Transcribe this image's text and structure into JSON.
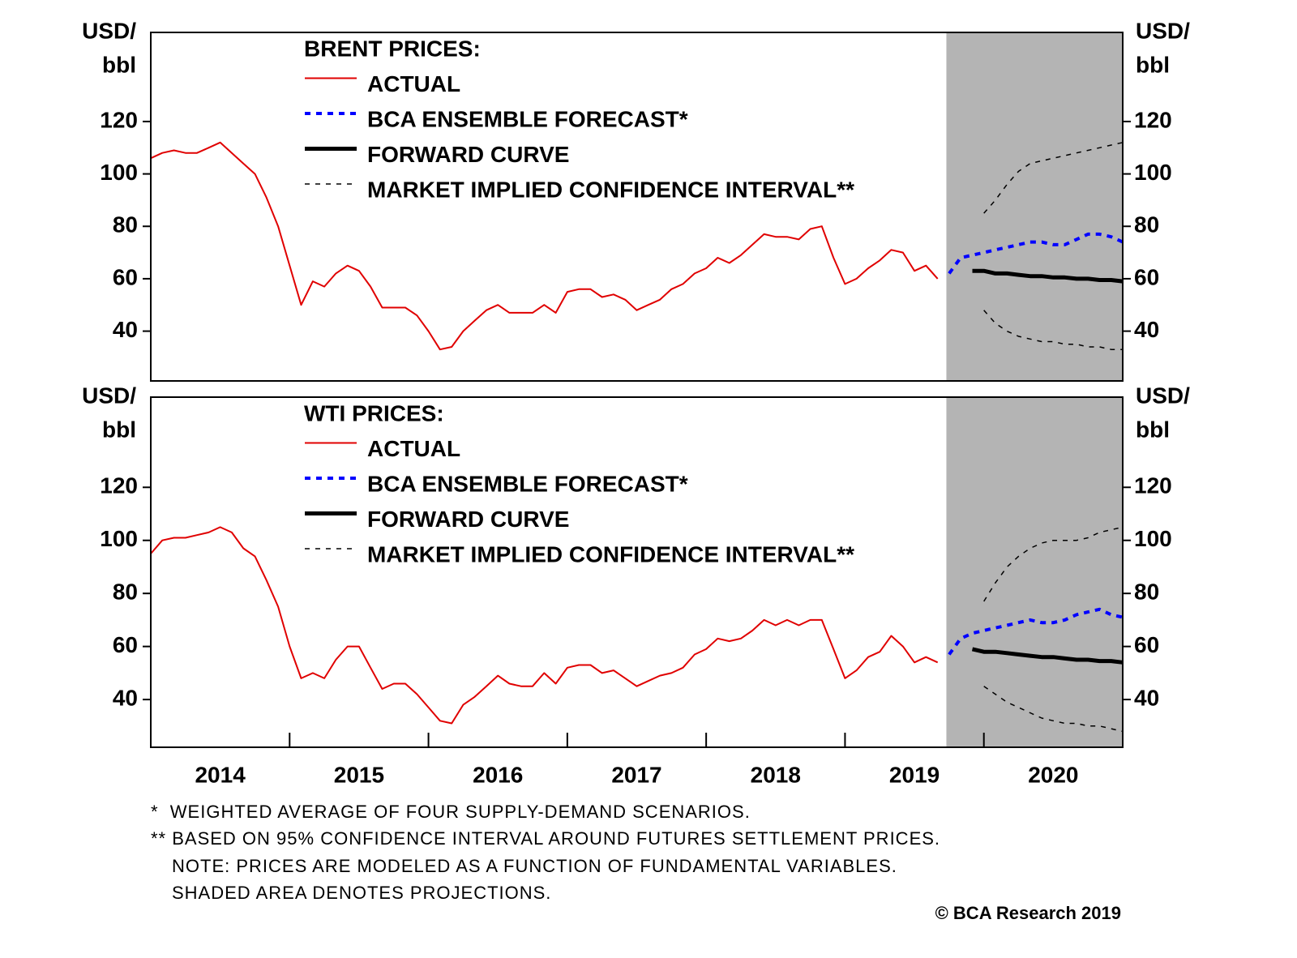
{
  "chart_data": [
    {
      "type": "line",
      "legend_title": "BRENT PRICES:",
      "y_unit": [
        "USD/",
        "bbl"
      ],
      "xlim": [
        2014,
        2021
      ],
      "ylim": [
        21,
        154
      ],
      "yticks": [
        40,
        60,
        80,
        100,
        120
      ],
      "shade": {
        "from": 2019.73,
        "to": 2021,
        "color": "#b4b4b4"
      },
      "series": [
        {
          "name": "ACTUAL",
          "color": "#e00000",
          "style": "solid",
          "width": 2,
          "x": [
            2014,
            2014.083,
            2014.167,
            2014.25,
            2014.333,
            2014.417,
            2014.5,
            2014.583,
            2014.667,
            2014.75,
            2014.833,
            2014.917,
            2015,
            2015.083,
            2015.167,
            2015.25,
            2015.333,
            2015.417,
            2015.5,
            2015.583,
            2015.667,
            2015.75,
            2015.833,
            2015.917,
            2016,
            2016.083,
            2016.167,
            2016.25,
            2016.333,
            2016.417,
            2016.5,
            2016.583,
            2016.667,
            2016.75,
            2016.833,
            2016.917,
            2017,
            2017.083,
            2017.167,
            2017.25,
            2017.333,
            2017.417,
            2017.5,
            2017.583,
            2017.667,
            2017.75,
            2017.833,
            2017.917,
            2018,
            2018.083,
            2018.167,
            2018.25,
            2018.333,
            2018.417,
            2018.5,
            2018.583,
            2018.667,
            2018.75,
            2018.833,
            2018.917,
            2019,
            2019.083,
            2019.167,
            2019.25,
            2019.333,
            2019.417,
            2019.5,
            2019.583,
            2019.667
          ],
          "values": [
            106,
            108,
            109,
            108,
            108,
            110,
            112,
            108,
            104,
            100,
            91,
            80,
            65,
            50,
            59,
            57,
            62,
            65,
            63,
            57,
            49,
            49,
            49,
            46,
            40,
            33,
            34,
            40,
            44,
            48,
            50,
            47,
            47,
            47,
            50,
            47,
            55,
            56,
            56,
            53,
            54,
            52,
            48,
            50,
            52,
            56,
            58,
            62,
            64,
            68,
            66,
            69,
            73,
            77,
            76,
            76,
            75,
            79,
            80,
            68,
            58,
            60,
            64,
            67,
            71,
            70,
            63,
            65,
            60
          ]
        },
        {
          "name": "BCA ENSEMBLE FORECAST*",
          "color": "#0000ff",
          "style": "dotted",
          "width": 4,
          "x": [
            2019.75,
            2019.833,
            2019.917,
            2020,
            2020.083,
            2020.167,
            2020.25,
            2020.333,
            2020.417,
            2020.5,
            2020.583,
            2020.667,
            2020.75,
            2020.833,
            2020.917,
            2021
          ],
          "values": [
            62,
            68,
            69,
            70,
            71,
            72,
            73,
            74,
            74,
            73,
            73,
            75,
            77,
            77,
            76,
            74
          ]
        },
        {
          "name": "FORWARD CURVE",
          "color": "#000000",
          "style": "solid",
          "width": 5,
          "x": [
            2019.917,
            2020,
            2020.083,
            2020.167,
            2020.25,
            2020.333,
            2020.417,
            2020.5,
            2020.583,
            2020.667,
            2020.75,
            2020.833,
            2020.917,
            2021
          ],
          "values": [
            63,
            63,
            62,
            62,
            61.5,
            61,
            61,
            60.5,
            60.5,
            60,
            60,
            59.5,
            59.5,
            59
          ]
        },
        {
          "name": "MARKET IMPLIED CONFIDENCE INTERVAL**",
          "color": "#000000",
          "style": "dashed",
          "width": 1.5,
          "x": [
            2020,
            2020.083,
            2020.167,
            2020.25,
            2020.333,
            2020.417,
            2020.5,
            2020.583,
            2020.667,
            2020.75,
            2020.833,
            2020.917,
            2021
          ],
          "values": [
            85,
            90,
            96,
            101,
            104,
            105,
            106,
            107,
            108,
            109,
            110,
            111,
            112
          ]
        },
        {
          "color": "#000000",
          "style": "dashed",
          "width": 1.5,
          "x": [
            2020,
            2020.083,
            2020.167,
            2020.25,
            2020.333,
            2020.417,
            2020.5,
            2020.583,
            2020.667,
            2020.75,
            2020.833,
            2020.917,
            2021
          ],
          "values": [
            48,
            43,
            40,
            38,
            37,
            36,
            36,
            35,
            35,
            34,
            34,
            33,
            33
          ]
        }
      ]
    },
    {
      "type": "line",
      "legend_title": "WTI PRICES:",
      "y_unit": [
        "USD/",
        "bbl"
      ],
      "xlim": [
        2014,
        2021
      ],
      "ylim": [
        22,
        154
      ],
      "yticks": [
        40,
        60,
        80,
        100,
        120
      ],
      "xtick_marks": [
        2015,
        2016,
        2017,
        2018,
        2019,
        2020
      ],
      "xticks": [
        {
          "value": 2014.5,
          "label": "2014"
        },
        {
          "value": 2015.5,
          "label": "2015"
        },
        {
          "value": 2016.5,
          "label": "2016"
        },
        {
          "value": 2017.5,
          "label": "2017"
        },
        {
          "value": 2018.5,
          "label": "2018"
        },
        {
          "value": 2019.5,
          "label": "2019"
        },
        {
          "value": 2020.5,
          "label": "2020"
        }
      ],
      "shade": {
        "from": 2019.73,
        "to": 2021,
        "color": "#b4b4b4"
      },
      "series": [
        {
          "name": "ACTUAL",
          "color": "#e00000",
          "style": "solid",
          "width": 2,
          "x": [
            2014,
            2014.083,
            2014.167,
            2014.25,
            2014.333,
            2014.417,
            2014.5,
            2014.583,
            2014.667,
            2014.75,
            2014.833,
            2014.917,
            2015,
            2015.083,
            2015.167,
            2015.25,
            2015.333,
            2015.417,
            2015.5,
            2015.583,
            2015.667,
            2015.75,
            2015.833,
            2015.917,
            2016,
            2016.083,
            2016.167,
            2016.25,
            2016.333,
            2016.417,
            2016.5,
            2016.583,
            2016.667,
            2016.75,
            2016.833,
            2016.917,
            2017,
            2017.083,
            2017.167,
            2017.25,
            2017.333,
            2017.417,
            2017.5,
            2017.583,
            2017.667,
            2017.75,
            2017.833,
            2017.917,
            2018,
            2018.083,
            2018.167,
            2018.25,
            2018.333,
            2018.417,
            2018.5,
            2018.583,
            2018.667,
            2018.75,
            2018.833,
            2018.917,
            2019,
            2019.083,
            2019.167,
            2019.25,
            2019.333,
            2019.417,
            2019.5,
            2019.583,
            2019.667
          ],
          "values": [
            95,
            100,
            101,
            101,
            102,
            103,
            105,
            103,
            97,
            94,
            85,
            75,
            60,
            48,
            50,
            48,
            55,
            60,
            60,
            52,
            44,
            46,
            46,
            42,
            37,
            32,
            31,
            38,
            41,
            45,
            49,
            46,
            45,
            45,
            50,
            46,
            52,
            53,
            53,
            50,
            51,
            48,
            45,
            47,
            49,
            50,
            52,
            57,
            59,
            63,
            62,
            63,
            66,
            70,
            68,
            70,
            68,
            70,
            70,
            59,
            48,
            51,
            56,
            58,
            64,
            60,
            54,
            56,
            54
          ]
        },
        {
          "name": "BCA ENSEMBLE FORECAST*",
          "color": "#0000ff",
          "style": "dotted",
          "width": 4,
          "x": [
            2019.75,
            2019.833,
            2019.917,
            2020,
            2020.083,
            2020.167,
            2020.25,
            2020.333,
            2020.417,
            2020.5,
            2020.583,
            2020.667,
            2020.75,
            2020.833,
            2020.917,
            2021
          ],
          "values": [
            57,
            63,
            65,
            66,
            67,
            68,
            69,
            70,
            69,
            69,
            70,
            72,
            73,
            74,
            72,
            71
          ]
        },
        {
          "name": "FORWARD CURVE",
          "color": "#000000",
          "style": "solid",
          "width": 5,
          "x": [
            2019.917,
            2020,
            2020.083,
            2020.167,
            2020.25,
            2020.333,
            2020.417,
            2020.5,
            2020.583,
            2020.667,
            2020.75,
            2020.833,
            2020.917,
            2021
          ],
          "values": [
            59,
            58,
            58,
            57.5,
            57,
            56.5,
            56,
            56,
            55.5,
            55,
            55,
            54.5,
            54.5,
            54
          ]
        },
        {
          "name": "MARKET IMPLIED CONFIDENCE INTERVAL**",
          "color": "#000000",
          "style": "dashed",
          "width": 1.5,
          "x": [
            2020,
            2020.083,
            2020.167,
            2020.25,
            2020.333,
            2020.417,
            2020.5,
            2020.583,
            2020.667,
            2020.75,
            2020.833,
            2020.917,
            2021
          ],
          "values": [
            77,
            84,
            90,
            94,
            97,
            99,
            100,
            100,
            100,
            101,
            103,
            104,
            105
          ]
        },
        {
          "color": "#000000",
          "style": "dashed",
          "width": 1.5,
          "x": [
            2020,
            2020.083,
            2020.167,
            2020.25,
            2020.333,
            2020.417,
            2020.5,
            2020.583,
            2020.667,
            2020.75,
            2020.833,
            2020.917,
            2021
          ],
          "values": [
            45,
            42,
            39,
            37,
            35,
            33,
            32,
            31,
            31,
            30,
            30,
            29,
            28
          ]
        }
      ]
    }
  ],
  "notes": [
    "*  WEIGHTED AVERAGE OF FOUR SUPPLY-DEMAND SCENARIOS.",
    "** BASED ON 95% CONFIDENCE INTERVAL AROUND FUTURES SETTLEMENT PRICES.",
    "NOTE: PRICES ARE MODELED AS A FUNCTION OF FUNDAMENTAL VARIABLES.",
    "SHADED AREA DENOTES PROJECTIONS."
  ],
  "copyright": "© BCA Research 2019"
}
